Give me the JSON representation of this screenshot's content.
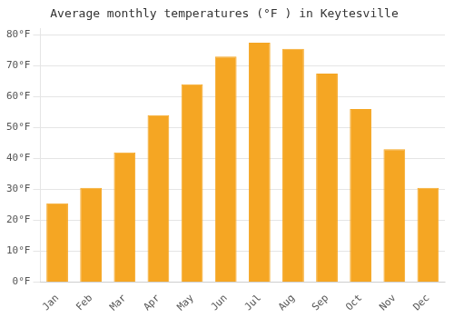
{
  "chart_data": {
    "type": "bar",
    "title": "Average monthly temperatures (°F ) in Keytesville",
    "categories": [
      "Jan",
      "Feb",
      "Mar",
      "Apr",
      "May",
      "Jun",
      "Jul",
      "Aug",
      "Sep",
      "Oct",
      "Nov",
      "Dec"
    ],
    "values": [
      25.5,
      30.5,
      42.0,
      54.0,
      64.0,
      73.0,
      77.5,
      75.5,
      67.5,
      56.0,
      43.0,
      30.5
    ],
    "color": "#F5A623",
    "ylim": [
      0,
      82
    ],
    "yticks": [
      {
        "value": 0,
        "label": "0°F"
      },
      {
        "value": 10,
        "label": "10°F"
      },
      {
        "value": 20,
        "label": "20°F"
      },
      {
        "value": 30,
        "label": "30°F"
      },
      {
        "value": 40,
        "label": "40°F"
      },
      {
        "value": 50,
        "label": "50°F"
      },
      {
        "value": 60,
        "label": "60°F"
      },
      {
        "value": 70,
        "label": "70°F"
      },
      {
        "value": 80,
        "label": "80°F"
      }
    ],
    "grid": true
  }
}
